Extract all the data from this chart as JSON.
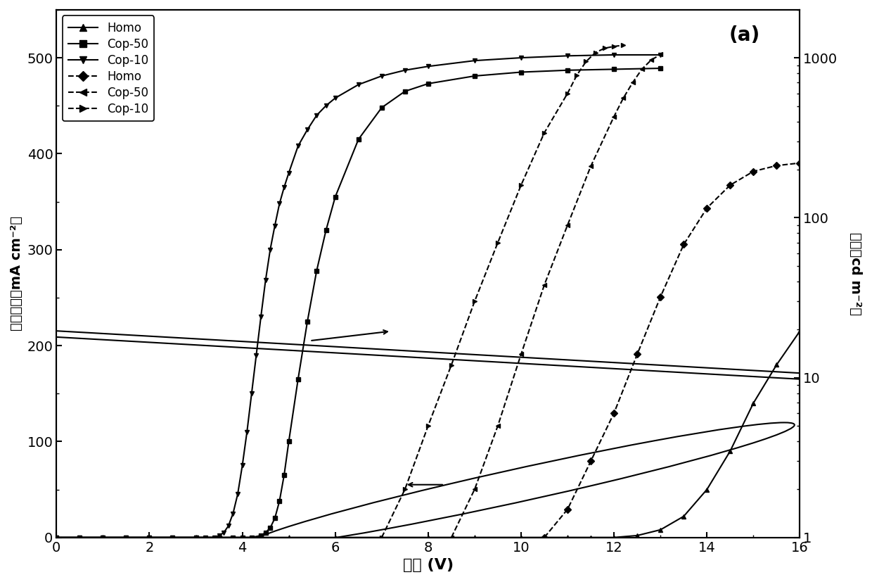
{
  "title_label": "(a)",
  "xlabel": "电压 (V)",
  "ylabel_left": "电流密度（mA cm⁻²）",
  "ylabel_right": "亮度（cd m⁻²）",
  "xlim": [
    0,
    16
  ],
  "ylim_left": [
    0,
    550
  ],
  "ylim_right": [
    1,
    2000
  ],
  "background_color": "#ffffff",
  "line_color": "#000000",
  "current_density": {
    "Cop-10": {
      "x": [
        0,
        0.5,
        1.0,
        1.5,
        2.0,
        2.5,
        3.0,
        3.2,
        3.4,
        3.5,
        3.6,
        3.7,
        3.8,
        3.9,
        4.0,
        4.1,
        4.2,
        4.3,
        4.4,
        4.5,
        4.6,
        4.7,
        4.8,
        4.9,
        5.0,
        5.2,
        5.4,
        5.6,
        5.8,
        6.0,
        6.5,
        7.0,
        7.5,
        8.0,
        9.0,
        10.0,
        11.0,
        12.0,
        13.0
      ],
      "y": [
        0,
        0,
        0,
        0,
        0,
        0,
        0,
        0,
        0,
        2,
        5,
        12,
        25,
        45,
        75,
        110,
        150,
        190,
        230,
        268,
        300,
        325,
        348,
        365,
        380,
        408,
        425,
        440,
        450,
        458,
        472,
        481,
        487,
        491,
        497,
        500,
        502,
        503,
        503
      ]
    },
    "Cop-50": {
      "x": [
        0,
        0.5,
        1.0,
        1.5,
        2.0,
        2.5,
        3.0,
        3.5,
        3.8,
        4.0,
        4.2,
        4.4,
        4.5,
        4.6,
        4.7,
        4.8,
        4.9,
        5.0,
        5.2,
        5.4,
        5.6,
        5.8,
        6.0,
        6.5,
        7.0,
        7.5,
        8.0,
        9.0,
        10.0,
        11.0,
        12.0,
        13.0
      ],
      "y": [
        0,
        0,
        0,
        0,
        0,
        0,
        0,
        0,
        0,
        0,
        0,
        2,
        5,
        10,
        20,
        38,
        65,
        100,
        165,
        225,
        278,
        320,
        355,
        415,
        448,
        465,
        473,
        481,
        485,
        487,
        488,
        489
      ]
    },
    "Homo": {
      "x": [
        0,
        1,
        2,
        3,
        4,
        5,
        6,
        7,
        8,
        9,
        10,
        10.5,
        11.0,
        11.5,
        12.0,
        12.5,
        13.0,
        13.5,
        14.0,
        14.5,
        15.0,
        15.5,
        16.0
      ],
      "y": [
        0,
        0,
        0,
        0,
        0,
        0,
        0,
        0,
        0,
        0,
        0,
        0,
        0,
        0,
        0,
        2,
        8,
        22,
        50,
        90,
        140,
        180,
        215
      ]
    }
  },
  "luminance": {
    "Cop-10": {
      "x": [
        7.0,
        7.5,
        8.0,
        8.5,
        9.0,
        9.5,
        10.0,
        10.5,
        11.0,
        11.2,
        11.4,
        11.6,
        11.8,
        12.0,
        12.2
      ],
      "y": [
        1,
        2,
        5,
        12,
        30,
        70,
        160,
        340,
        600,
        780,
        950,
        1080,
        1150,
        1180,
        1200
      ]
    },
    "Cop-50": {
      "x": [
        8.5,
        9.0,
        9.5,
        10.0,
        10.5,
        11.0,
        11.5,
        12.0,
        12.2,
        12.4,
        12.6,
        12.8,
        13.0
      ],
      "y": [
        1,
        2,
        5,
        14,
        38,
        90,
        210,
        430,
        560,
        700,
        850,
        970,
        1050
      ]
    },
    "Homo": {
      "x": [
        10.5,
        11.0,
        11.5,
        12.0,
        12.5,
        13.0,
        13.5,
        14.0,
        14.5,
        15.0,
        15.5,
        16.0
      ],
      "y": [
        1,
        1.5,
        3,
        6,
        14,
        32,
        68,
        115,
        160,
        195,
        212,
        220
      ]
    }
  }
}
